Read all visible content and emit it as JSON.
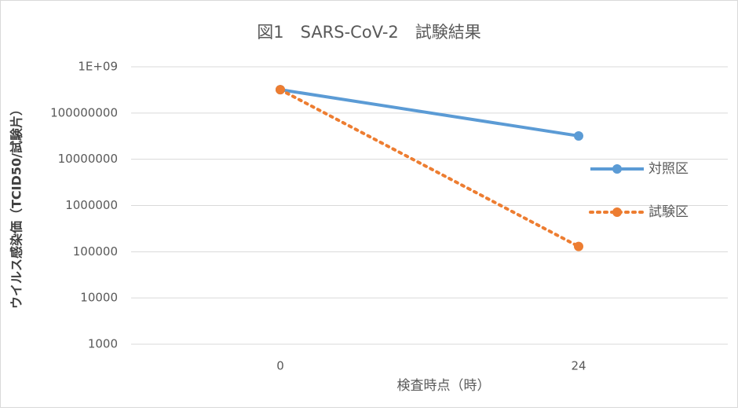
{
  "chart_data": {
    "type": "line",
    "title": "図1　SARS-CoV-2　試験結果",
    "x_label": "検査時点（時）",
    "y_label": "ウイルス感染価（TCID50/試験片）",
    "categories": [
      "0",
      "24"
    ],
    "series": [
      {
        "name": "対照区",
        "color": "#5b9bd5",
        "dash": "solid",
        "values": [
          320000000,
          32000000
        ]
      },
      {
        "name": "試験区",
        "color": "#ed7d31",
        "dash": "dotted",
        "values": [
          320000000,
          130000
        ]
      }
    ],
    "log_scale": true,
    "ylim": [
      1000,
      1000000000
    ],
    "yticks": [
      1000,
      10000,
      100000,
      1000000,
      10000000,
      100000000,
      {
        "value": 1000000000,
        "label": "1E+09"
      }
    ],
    "grid": true,
    "legend": "right"
  }
}
